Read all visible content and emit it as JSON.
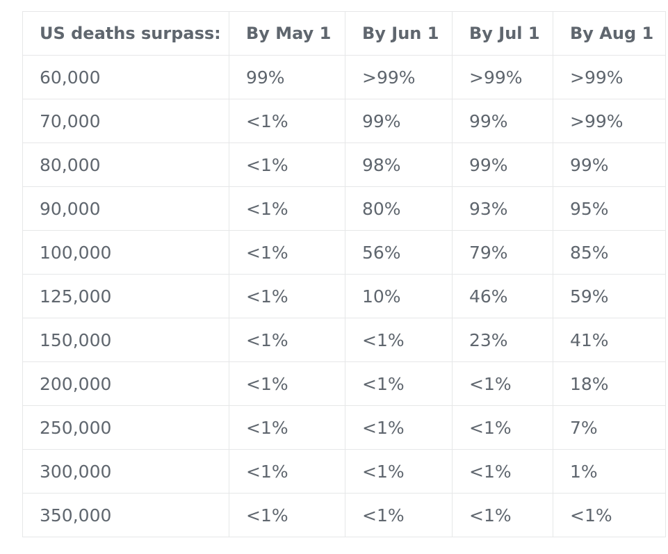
{
  "table": {
    "headers": [
      "US deaths surpass:",
      "By May 1",
      "By Jun 1",
      "By Jul 1",
      "By Aug 1"
    ],
    "rows": [
      [
        "60,000",
        "99%",
        ">99%",
        ">99%",
        ">99%"
      ],
      [
        "70,000",
        "<1%",
        "99%",
        "99%",
        ">99%"
      ],
      [
        "80,000",
        "<1%",
        "98%",
        "99%",
        "99%"
      ],
      [
        "90,000",
        "<1%",
        "80%",
        "93%",
        "95%"
      ],
      [
        "100,000",
        "<1%",
        "56%",
        "79%",
        "85%"
      ],
      [
        "125,000",
        "<1%",
        "10%",
        "46%",
        "59%"
      ],
      [
        "150,000",
        "<1%",
        "<1%",
        "23%",
        "41%"
      ],
      [
        "200,000",
        "<1%",
        "<1%",
        "<1%",
        "18%"
      ],
      [
        "250,000",
        "<1%",
        "<1%",
        "<1%",
        "7%"
      ],
      [
        "300,000",
        "<1%",
        "<1%",
        "<1%",
        "1%"
      ],
      [
        "350,000",
        "<1%",
        "<1%",
        "<1%",
        "<1%"
      ]
    ]
  },
  "colors": {
    "text": "#5f666e",
    "border": "#e6e7e8",
    "background": "#ffffff"
  }
}
